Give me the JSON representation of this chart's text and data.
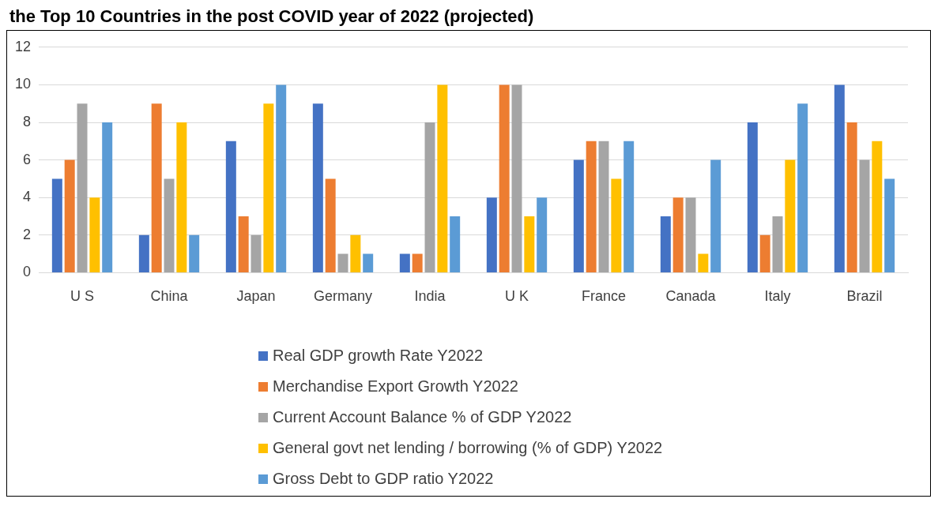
{
  "chart_data": {
    "type": "bar",
    "title": "the Top 10 Countries in the post COVID year of 2022 (projected)",
    "categories": [
      "U S",
      "China",
      "Japan",
      "Germany",
      "India",
      "U K",
      "France",
      "Canada",
      "Italy",
      "Brazil"
    ],
    "series": [
      {
        "name": "Real GDP growth Rate Y2022",
        "color": "#4472c4",
        "values": [
          5,
          2,
          7,
          9,
          1,
          4,
          6,
          3,
          8,
          10
        ]
      },
      {
        "name": "Merchandise Export Growth Y2022",
        "color": "#ed7d31",
        "values": [
          6,
          9,
          3,
          5,
          1,
          10,
          7,
          4,
          2,
          8
        ]
      },
      {
        "name": "Current Account Balance % of GDP Y2022",
        "color": "#a5a5a5",
        "values": [
          9,
          5,
          2,
          1,
          8,
          10,
          7,
          4,
          3,
          6
        ]
      },
      {
        "name": "General govt net lending / borrowing (% of GDP) Y2022",
        "color": "#ffc000",
        "values": [
          4,
          8,
          9,
          2,
          10,
          3,
          5,
          1,
          6,
          7
        ]
      },
      {
        "name": "Gross Debt to GDP ratio Y2022",
        "color": "#5b9bd5",
        "values": [
          8,
          2,
          10,
          1,
          3,
          4,
          7,
          6,
          9,
          5
        ]
      }
    ],
    "ylim": [
      0,
      12
    ],
    "yticks": [
      0,
      2,
      4,
      6,
      8,
      10,
      12
    ],
    "grid": "y",
    "legend": "bottom"
  }
}
